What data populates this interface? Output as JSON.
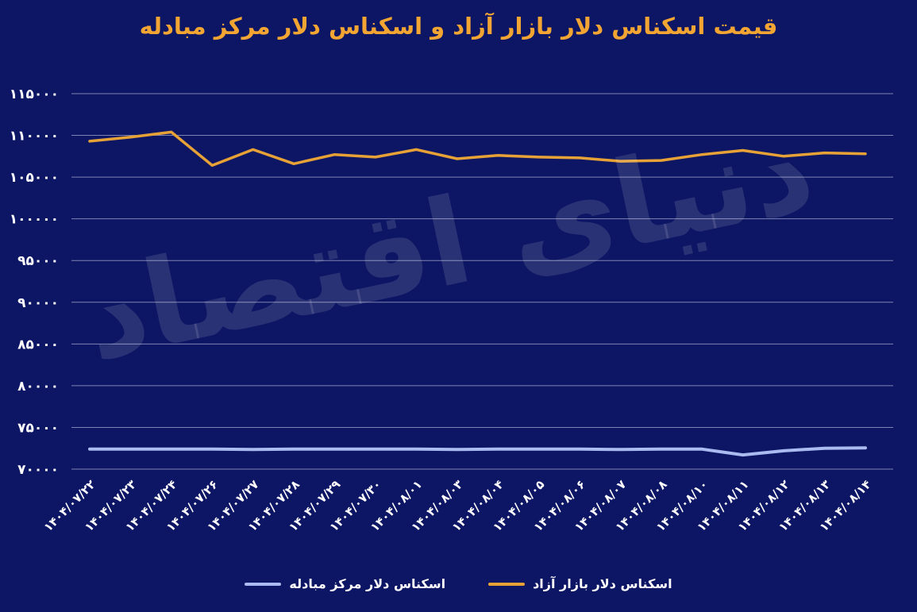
{
  "watermark": "دنیای اقتصاد",
  "colors": {
    "background": "#0d1664",
    "title": "#f2a532",
    "grid": "#c9cfe6",
    "tick_text": "#ffffff",
    "free_market_line": "#e6a236",
    "exchange_center_line": "#a9bbf0"
  },
  "chart_data": {
    "type": "line",
    "title": "قیمت اسکناس دلار بازار آزاد و اسکناس دلار مرکز مبادله",
    "categories": [
      "۱۴۰۴/۰۷/۲۲",
      "۱۴۰۴/۰۷/۲۳",
      "۱۴۰۴/۰۷/۲۴",
      "۱۴۰۴/۰۷/۲۶",
      "۱۴۰۴/۰۷/۲۷",
      "۱۴۰۴/۰۷/۲۸",
      "۱۴۰۴/۰۷/۲۹",
      "۱۴۰۴/۰۷/۳۰",
      "۱۴۰۴/۰۸/۰۱",
      "۱۴۰۴/۰۸/۰۳",
      "۱۴۰۴/۰۸/۰۴",
      "۱۴۰۴/۰۸/۰۵",
      "۱۴۰۴/۰۸/۰۶",
      "۱۴۰۴/۰۸/۰۷",
      "۱۴۰۴/۰۸/۰۸",
      "۱۴۰۴/۰۸/۱۰",
      "۱۴۰۴/۰۸/۱۱",
      "۱۴۰۴/۰۸/۱۲",
      "۱۴۰۴/۰۸/۱۳",
      "۱۴۰۴/۰۸/۱۴"
    ],
    "series": [
      {
        "key": "free-market",
        "name": "اسکناس دلار بازار آزاد",
        "color": "#e6a236",
        "values": [
          109300,
          109800,
          110400,
          106400,
          108300,
          106600,
          107700,
          107400,
          108300,
          107200,
          107600,
          107400,
          107300,
          106900,
          107000,
          107700,
          108200,
          107500,
          107900,
          107800
        ]
      },
      {
        "key": "exchange-center",
        "name": "اسکناس دلار مرکز مبادله",
        "color": "#a9bbf0",
        "values": [
          72400,
          72400,
          72400,
          72400,
          72350,
          72400,
          72400,
          72400,
          72400,
          72350,
          72400,
          72400,
          72400,
          72350,
          72400,
          72400,
          71700,
          72200,
          72500,
          72550
        ]
      }
    ],
    "ylim": [
      70000,
      115000
    ],
    "yticks": [
      115000,
      110000,
      105000,
      100000,
      95000,
      90000,
      85000,
      80000,
      75000,
      70000
    ],
    "ytick_labels": [
      "۱۱۵۰۰۰",
      "۱۱۰۰۰۰",
      "۱۰۵۰۰۰",
      "۱۰۰۰۰۰",
      "۹۵۰۰۰",
      "۹۰۰۰۰",
      "۸۵۰۰۰",
      "۸۰۰۰۰",
      "۷۵۰۰۰",
      "۷۰۰۰۰"
    ],
    "grid": true,
    "legend_position": "bottom",
    "x_tick_rotation_deg": -45
  }
}
